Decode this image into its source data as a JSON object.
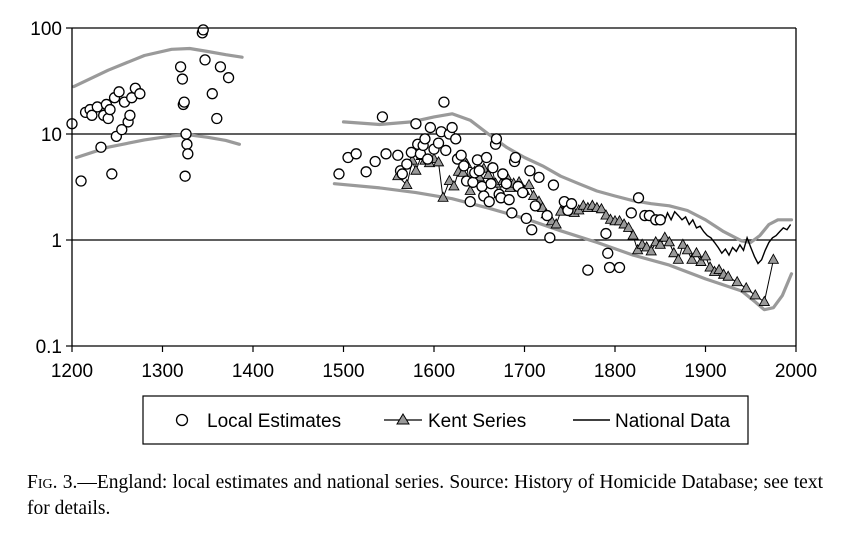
{
  "chart_data": {
    "type": "scatter",
    "title": "",
    "xlabel": "",
    "ylabel": "",
    "xlim": [
      1200,
      2000
    ],
    "ylim": [
      0.1,
      100
    ],
    "y_scale": "log",
    "x_ticks": [
      "1200",
      "1300",
      "1400",
      "1500",
      "1600",
      "1700",
      "1800",
      "1900",
      "2000"
    ],
    "y_ticks": [
      "0.1",
      "1",
      "10",
      "100"
    ],
    "gridlines_y": [
      1,
      10
    ],
    "legend": {
      "placement": "bottom",
      "items": [
        "Local Estimates",
        "Kent Series",
        "National Data"
      ]
    },
    "series": [
      {
        "name": "Local Estimates",
        "marker": "open-circle",
        "points": [
          [
            1200,
            12.5
          ],
          [
            1210,
            3.6
          ],
          [
            1215,
            16
          ],
          [
            1220,
            17
          ],
          [
            1222,
            15
          ],
          [
            1228,
            18
          ],
          [
            1232,
            7.5
          ],
          [
            1235,
            15
          ],
          [
            1238,
            19
          ],
          [
            1240,
            14
          ],
          [
            1242,
            17
          ],
          [
            1244,
            4.2
          ],
          [
            1247,
            22
          ],
          [
            1249,
            9.5
          ],
          [
            1252,
            25
          ],
          [
            1255,
            11
          ],
          [
            1258,
            20
          ],
          [
            1262,
            13
          ],
          [
            1264,
            15
          ],
          [
            1266,
            22
          ],
          [
            1270,
            27
          ],
          [
            1275,
            24
          ],
          [
            1320,
            43
          ],
          [
            1322,
            33
          ],
          [
            1323,
            19
          ],
          [
            1324,
            20
          ],
          [
            1326,
            10
          ],
          [
            1327,
            8
          ],
          [
            1328,
            6.5
          ],
          [
            1325,
            4
          ],
          [
            1344,
            90
          ],
          [
            1345,
            96
          ],
          [
            1347,
            50
          ],
          [
            1355,
            24
          ],
          [
            1360,
            14
          ],
          [
            1364,
            43
          ],
          [
            1373,
            34
          ],
          [
            1495,
            4.2
          ],
          [
            1505,
            6
          ],
          [
            1514,
            6.5
          ],
          [
            1525,
            4.4
          ],
          [
            1535,
            5.5
          ],
          [
            1543,
            14.5
          ],
          [
            1547,
            6.5
          ],
          [
            1560,
            6.3
          ],
          [
            1563,
            4.5
          ],
          [
            1565,
            4.2
          ],
          [
            1570,
            5.2
          ],
          [
            1575,
            6.7
          ],
          [
            1580,
            12.5
          ],
          [
            1582,
            8
          ],
          [
            1585,
            6.5
          ],
          [
            1588,
            7.8
          ],
          [
            1590,
            9
          ],
          [
            1593,
            5.8
          ],
          [
            1596,
            11.5
          ],
          [
            1600,
            7.2
          ],
          [
            1605,
            8.2
          ],
          [
            1608,
            10.5
          ],
          [
            1611,
            20
          ],
          [
            1613,
            7
          ],
          [
            1617,
            10
          ],
          [
            1620,
            11.5
          ],
          [
            1624,
            9
          ],
          [
            1626,
            5.8
          ],
          [
            1630,
            6.3
          ],
          [
            1633,
            5
          ],
          [
            1636,
            3.6
          ],
          [
            1640,
            2.3
          ],
          [
            1643,
            3.5
          ],
          [
            1645,
            4.3
          ],
          [
            1648,
            5.7
          ],
          [
            1650,
            4.5
          ],
          [
            1653,
            3.2
          ],
          [
            1655,
            2.6
          ],
          [
            1658,
            6
          ],
          [
            1661,
            2.3
          ],
          [
            1663,
            3.4
          ],
          [
            1665,
            4.8
          ],
          [
            1668,
            8
          ],
          [
            1669,
            9
          ],
          [
            1672,
            2.7
          ],
          [
            1674,
            2.5
          ],
          [
            1676,
            4.2
          ],
          [
            1680,
            3.4
          ],
          [
            1683,
            2.4
          ],
          [
            1686,
            1.8
          ],
          [
            1689,
            5.5
          ],
          [
            1690,
            6
          ],
          [
            1693,
            3.2
          ],
          [
            1698,
            2.8
          ],
          [
            1702,
            1.6
          ],
          [
            1706,
            4.5
          ],
          [
            1708,
            1.25
          ],
          [
            1712,
            2.1
          ],
          [
            1716,
            3.9
          ],
          [
            1725,
            1.7
          ],
          [
            1728,
            1.05
          ],
          [
            1732,
            3.3
          ],
          [
            1744,
            2.3
          ],
          [
            1748,
            1.9
          ],
          [
            1752,
            2.2
          ],
          [
            1770,
            0.52
          ],
          [
            1790,
            1.15
          ],
          [
            1792,
            0.75
          ],
          [
            1794,
            0.55
          ],
          [
            1805,
            0.55
          ],
          [
            1818,
            1.8
          ],
          [
            1826,
            2.5
          ],
          [
            1833,
            1.7
          ],
          [
            1838,
            1.7
          ],
          [
            1845,
            1.55
          ],
          [
            1850,
            1.55
          ]
        ]
      },
      {
        "name": "Kent Series",
        "marker": "triangle-line",
        "points": [
          [
            1560,
            4
          ],
          [
            1570,
            3.3
          ],
          [
            1576,
            5.6
          ],
          [
            1580,
            4.5
          ],
          [
            1586,
            6.2
          ],
          [
            1590,
            5.6
          ],
          [
            1595,
            5.3
          ],
          [
            1600,
            5.8
          ],
          [
            1605,
            5.4
          ],
          [
            1610,
            2.5
          ],
          [
            1617,
            3.6
          ],
          [
            1622,
            3.2
          ],
          [
            1627,
            4.4
          ],
          [
            1632,
            4.3
          ],
          [
            1636,
            5.2
          ],
          [
            1640,
            2.9
          ],
          [
            1645,
            4.4
          ],
          [
            1650,
            3.9
          ],
          [
            1655,
            4.7
          ],
          [
            1660,
            4.1
          ],
          [
            1664,
            4.8
          ],
          [
            1668,
            3.4
          ],
          [
            1672,
            2.7
          ],
          [
            1676,
            3.6
          ],
          [
            1680,
            4
          ],
          [
            1684,
            3.1
          ],
          [
            1688,
            3.4
          ],
          [
            1694,
            3.5
          ],
          [
            1700,
            2.9
          ],
          [
            1705,
            3.3
          ],
          [
            1710,
            2.6
          ],
          [
            1716,
            2.3
          ],
          [
            1720,
            2
          ],
          [
            1724,
            1.75
          ],
          [
            1730,
            1.5
          ],
          [
            1735,
            1.4
          ],
          [
            1740,
            1.85
          ],
          [
            1745,
            2.2
          ],
          [
            1750,
            1.9
          ],
          [
            1755,
            1.8
          ],
          [
            1760,
            1.9
          ],
          [
            1765,
            2.1
          ],
          [
            1770,
            2
          ],
          [
            1775,
            2.1
          ],
          [
            1780,
            2
          ],
          [
            1785,
            1.95
          ],
          [
            1790,
            1.7
          ],
          [
            1795,
            1.55
          ],
          [
            1800,
            1.5
          ],
          [
            1805,
            1.5
          ],
          [
            1810,
            1.4
          ],
          [
            1815,
            1.3
          ],
          [
            1820,
            1.1
          ],
          [
            1825,
            0.8
          ],
          [
            1830,
            0.9
          ],
          [
            1835,
            0.85
          ],
          [
            1840,
            0.78
          ],
          [
            1845,
            0.95
          ],
          [
            1850,
            0.9
          ],
          [
            1855,
            1.05
          ],
          [
            1860,
            0.95
          ],
          [
            1865,
            0.75
          ],
          [
            1870,
            0.65
          ],
          [
            1875,
            0.9
          ],
          [
            1880,
            0.8
          ],
          [
            1885,
            0.65
          ],
          [
            1890,
            0.75
          ],
          [
            1895,
            0.62
          ],
          [
            1900,
            0.7
          ],
          [
            1905,
            0.55
          ],
          [
            1910,
            0.5
          ],
          [
            1915,
            0.52
          ],
          [
            1920,
            0.47
          ],
          [
            1925,
            0.45
          ],
          [
            1935,
            0.4
          ],
          [
            1945,
            0.35
          ],
          [
            1955,
            0.3
          ],
          [
            1965,
            0.26
          ],
          [
            1975,
            0.65
          ]
        ]
      },
      {
        "name": "National Data",
        "marker": "line",
        "points": [
          [
            1834,
            1.8
          ],
          [
            1838,
            1.6
          ],
          [
            1842,
            1.75
          ],
          [
            1846,
            1.5
          ],
          [
            1850,
            1.65
          ],
          [
            1854,
            1.45
          ],
          [
            1858,
            1.8
          ],
          [
            1862,
            1.55
          ],
          [
            1866,
            1.85
          ],
          [
            1870,
            1.7
          ],
          [
            1874,
            1.55
          ],
          [
            1878,
            1.65
          ],
          [
            1882,
            1.4
          ],
          [
            1886,
            1.55
          ],
          [
            1890,
            1.3
          ],
          [
            1894,
            1.35
          ],
          [
            1898,
            1.2
          ],
          [
            1902,
            1.1
          ],
          [
            1906,
            1.05
          ],
          [
            1910,
            0.95
          ],
          [
            1914,
            0.85
          ],
          [
            1918,
            0.75
          ],
          [
            1922,
            0.82
          ],
          [
            1926,
            0.72
          ],
          [
            1930,
            0.85
          ],
          [
            1934,
            0.78
          ],
          [
            1938,
            0.9
          ],
          [
            1942,
            0.8
          ],
          [
            1946,
            1.05
          ],
          [
            1950,
            0.85
          ],
          [
            1954,
            0.7
          ],
          [
            1958,
            0.6
          ],
          [
            1962,
            0.65
          ],
          [
            1966,
            0.8
          ],
          [
            1970,
            0.95
          ],
          [
            1974,
            1.05
          ],
          [
            1978,
            1.1
          ],
          [
            1982,
            1.2
          ],
          [
            1986,
            1.3
          ],
          [
            1990,
            1.25
          ],
          [
            1994,
            1.4
          ]
        ]
      },
      {
        "marker": "band",
        "points": [
          [
            1202,
            28
          ],
          [
            1240,
            40
          ],
          [
            1280,
            55
          ],
          [
            1310,
            63
          ],
          [
            1330,
            64
          ],
          [
            1350,
            60
          ],
          [
            1370,
            56
          ],
          [
            1388,
            53
          ]
        ]
      },
      {
        "marker": "band",
        "points": [
          [
            1205,
            6
          ],
          [
            1240,
            7.5
          ],
          [
            1280,
            8.8
          ],
          [
            1310,
            9.6
          ],
          [
            1330,
            9.8
          ],
          [
            1350,
            9.3
          ],
          [
            1370,
            8.7
          ],
          [
            1385,
            8
          ]
        ]
      },
      {
        "marker": "band",
        "points": [
          [
            1500,
            13
          ],
          [
            1540,
            12.3
          ],
          [
            1575,
            13
          ],
          [
            1600,
            14.5
          ],
          [
            1620,
            15.5
          ],
          [
            1640,
            13.5
          ],
          [
            1660,
            10
          ],
          [
            1680,
            7.5
          ],
          [
            1700,
            6
          ],
          [
            1720,
            5
          ],
          [
            1740,
            4
          ],
          [
            1760,
            3.4
          ],
          [
            1780,
            2.9
          ],
          [
            1800,
            2.6
          ],
          [
            1820,
            2.35
          ],
          [
            1840,
            2.2
          ],
          [
            1860,
            2.1
          ],
          [
            1880,
            1.9
          ],
          [
            1900,
            1.55
          ],
          [
            1920,
            1.2
          ],
          [
            1940,
            0.98
          ],
          [
            1950,
            0.95
          ],
          [
            1960,
            1.1
          ],
          [
            1970,
            1.4
          ],
          [
            1980,
            1.55
          ],
          [
            1995,
            1.55
          ]
        ]
      },
      {
        "marker": "band",
        "points": [
          [
            1490,
            3.4
          ],
          [
            1540,
            3.1
          ],
          [
            1580,
            2.8
          ],
          [
            1620,
            2.45
          ],
          [
            1660,
            2
          ],
          [
            1700,
            1.6
          ],
          [
            1740,
            1.22
          ],
          [
            1780,
            0.95
          ],
          [
            1820,
            0.72
          ],
          [
            1860,
            0.58
          ],
          [
            1900,
            0.43
          ],
          [
            1940,
            0.33
          ],
          [
            1955,
            0.26
          ],
          [
            1965,
            0.22
          ],
          [
            1975,
            0.23
          ],
          [
            1985,
            0.3
          ],
          [
            1995,
            0.48
          ]
        ]
      }
    ]
  },
  "caption": {
    "fig_label": "Fig. 3.",
    "text": "—England: local estimates and national series. Source: History of Homicide Database; see text for details."
  }
}
